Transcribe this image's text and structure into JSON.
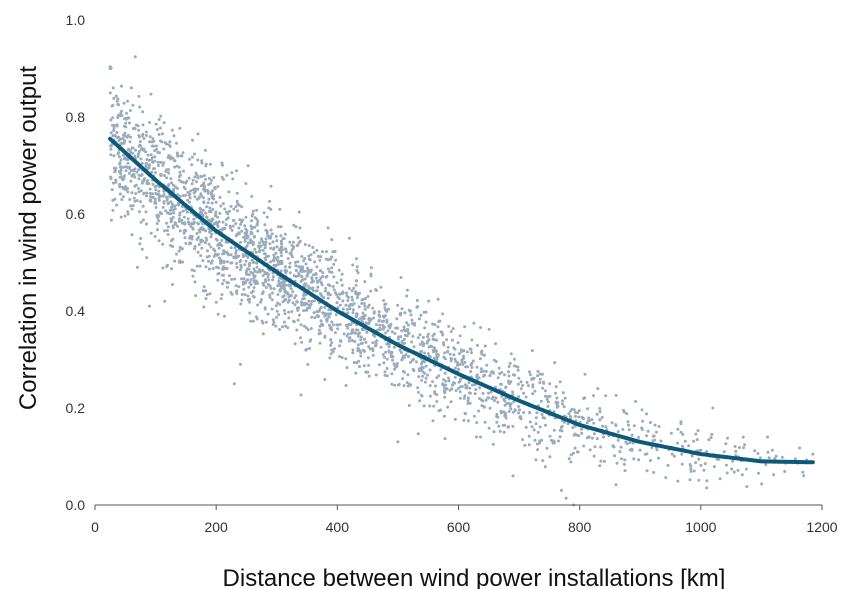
{
  "chart_data": {
    "type": "scatter",
    "title": "",
    "xlabel": "Distance between wind power installations [km]",
    "ylabel": "Correlation in wind power output",
    "xlim": [
      0,
      1200
    ],
    "ylim": [
      0,
      1.0
    ],
    "x_ticks": [
      0,
      200,
      400,
      600,
      800,
      1000,
      1200
    ],
    "y_ticks": [
      0.0,
      0.2,
      0.4,
      0.6,
      0.8,
      1.0
    ],
    "x_tick_labels": [
      "0",
      "200",
      "400",
      "600",
      "800",
      "1000",
      "1200"
    ],
    "y_tick_labels": [
      "0.0",
      "0.2",
      "0.4",
      "0.6",
      "0.8",
      "1.0"
    ],
    "grid": false,
    "legend": "none",
    "colors": {
      "points": "#9aabbb",
      "trend": "#0b5a7c",
      "axis": "#555555"
    },
    "trend_line": {
      "x": [
        25,
        100,
        200,
        300,
        400,
        500,
        600,
        700,
        800,
        900,
        1000,
        1100,
        1185
      ],
      "y": [
        0.755,
        0.67,
        0.565,
        0.48,
        0.4,
        0.33,
        0.27,
        0.215,
        0.165,
        0.13,
        0.105,
        0.09,
        0.088
      ]
    },
    "scatter_profile": {
      "x_range": [
        25,
        1185
      ],
      "center_x": [
        25,
        100,
        200,
        300,
        400,
        500,
        600,
        700,
        800,
        900,
        1000,
        1100,
        1185
      ],
      "center_y": [
        0.755,
        0.67,
        0.565,
        0.48,
        0.4,
        0.33,
        0.27,
        0.215,
        0.165,
        0.13,
        0.105,
        0.09,
        0.088
      ],
      "spread_y": [
        0.09,
        0.09,
        0.085,
        0.075,
        0.07,
        0.065,
        0.065,
        0.06,
        0.06,
        0.05,
        0.045,
        0.03,
        0.025
      ],
      "density": [
        1.0,
        1.0,
        1.0,
        0.95,
        0.85,
        0.7,
        0.55,
        0.42,
        0.3,
        0.2,
        0.12,
        0.08,
        0.05
      ],
      "count": 2600
    },
    "sample_points": [
      {
        "x": 25,
        "y": 0.9
      },
      {
        "x": 30,
        "y": 0.86
      },
      {
        "x": 60,
        "y": 0.86
      },
      {
        "x": 70,
        "y": 0.49
      },
      {
        "x": 90,
        "y": 0.41
      },
      {
        "x": 115,
        "y": 0.42
      },
      {
        "x": 230,
        "y": 0.25
      },
      {
        "x": 240,
        "y": 0.29
      },
      {
        "x": 420,
        "y": 0.55
      },
      {
        "x": 500,
        "y": 0.13
      },
      {
        "x": 690,
        "y": 0.06
      },
      {
        "x": 770,
        "y": 0.03
      },
      {
        "x": 790,
        "y": 0.0
      },
      {
        "x": 830,
        "y": 0.24
      },
      {
        "x": 1010,
        "y": 0.05
      },
      {
        "x": 1020,
        "y": 0.2
      },
      {
        "x": 1070,
        "y": 0.14
      },
      {
        "x": 1110,
        "y": 0.14
      }
    ]
  }
}
